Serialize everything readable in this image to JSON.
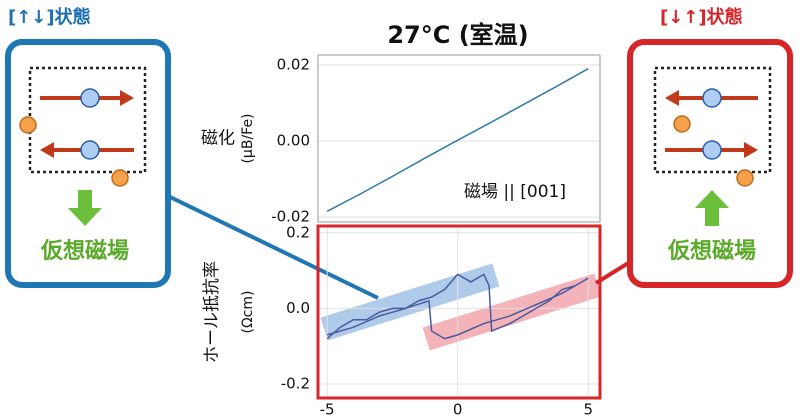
{
  "title": "27°C (室温)",
  "panels": [
    {
      "title": "[↑↓]状態",
      "label": "仮想磁場"
    },
    {
      "title": "[↓↑]状態",
      "label": "仮想磁場"
    }
  ],
  "chart_data": [
    {
      "type": "line",
      "ylabel": "磁化",
      "yunit": "(μB/Fe)",
      "xlabel": "磁場 || [001]",
      "x": [
        -5,
        -3.75,
        -2.5,
        -1.25,
        0,
        1.25,
        2.5,
        3.75,
        5
      ],
      "series": [
        {
          "color": "#2f7aa6",
          "values": [
            -0.0185,
            -0.014,
            -0.0093,
            -0.0045,
            0.0002,
            0.0048,
            0.0095,
            0.0142,
            0.019
          ]
        }
      ],
      "xlim": [
        -5.35,
        5.45
      ],
      "ylim": [
        -0.0213,
        0.0226
      ],
      "yticks": [
        -0.02,
        {
          "value": 0,
          "label": "0.00"
        },
        0.02
      ],
      "grid": true,
      "frame_color": "#999999"
    },
    {
      "type": "line",
      "ylabel": "ホール抵抗率",
      "yunit": "(Ωcm)",
      "x": [
        -5,
        -4.5,
        -4,
        -3.5,
        -3,
        -2.5,
        -2,
        -1.5,
        -1,
        -0.5,
        0,
        0.5,
        1,
        1.2,
        1.3,
        2,
        2.5,
        3,
        3.5,
        4,
        4.5,
        5,
        4.5,
        4,
        3,
        2,
        1,
        0,
        -0.5,
        -1,
        -1.1,
        -2,
        -3,
        -4,
        -5
      ],
      "series": [
        {
          "color": "#4a5aa0",
          "values": [
            -0.08,
            -0.05,
            -0.03,
            -0.03,
            -0.01,
            0.0,
            0.0,
            0.02,
            0.03,
            0.05,
            0.09,
            0.07,
            0.09,
            0.06,
            -0.06,
            -0.04,
            -0.02,
            0.0,
            0.02,
            0.05,
            0.06,
            0.08,
            0.06,
            0.04,
            0.01,
            -0.02,
            -0.04,
            -0.07,
            -0.08,
            -0.06,
            0.02,
            0.0,
            -0.02,
            -0.05,
            -0.07
          ]
        }
      ],
      "xlim": [
        -5.35,
        5.45
      ],
      "ylim": [
        -0.237,
        0.218
      ],
      "xticks": [
        -5,
        0,
        5
      ],
      "yticks": [
        -0.2,
        {
          "value": 0,
          "label": "0.0"
        },
        0.2
      ],
      "grid": true,
      "frame_color": "#d7262a"
    }
  ]
}
